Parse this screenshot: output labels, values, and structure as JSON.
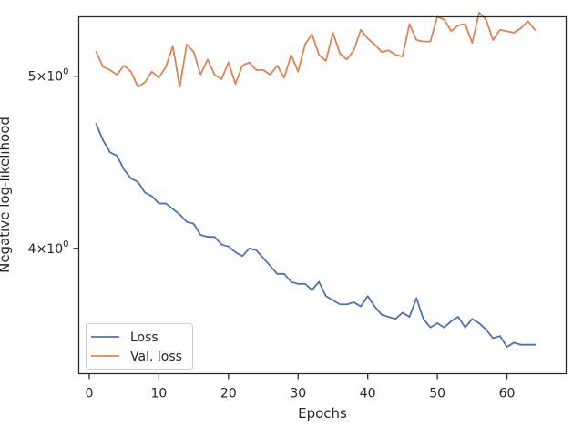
{
  "chart_data": {
    "type": "line",
    "xlabel": "Epochs",
    "ylabel": "Negative log-likelihood",
    "xlim": [
      -1.5,
      68.5
    ],
    "ylim": [
      3.4,
      5.4
    ],
    "y_scale": "log",
    "grid": false,
    "legend_position": "lower-left",
    "x_ticks": [
      {
        "value": 0,
        "label": "0"
      },
      {
        "value": 10,
        "label": "10"
      },
      {
        "value": 20,
        "label": "20"
      },
      {
        "value": 30,
        "label": "30"
      },
      {
        "value": 40,
        "label": "40"
      },
      {
        "value": 50,
        "label": "50"
      },
      {
        "value": 60,
        "label": "60"
      }
    ],
    "y_ticks": [
      {
        "value": 4.0,
        "base": "4",
        "mult": "×",
        "power": "10",
        "exp": "0"
      },
      {
        "value": 5.0,
        "base": "5",
        "mult": "×",
        "power": "10",
        "exp": "0"
      }
    ],
    "x": [
      1,
      2,
      3,
      4,
      5,
      6,
      7,
      8,
      9,
      10,
      11,
      12,
      13,
      14,
      15,
      16,
      17,
      18,
      19,
      20,
      21,
      22,
      23,
      24,
      25,
      26,
      27,
      28,
      29,
      30,
      31,
      32,
      33,
      34,
      35,
      36,
      37,
      38,
      39,
      40,
      41,
      42,
      43,
      44,
      45,
      46,
      47,
      48,
      49,
      50,
      51,
      52,
      53,
      54,
      55,
      56,
      57,
      58,
      59,
      60,
      61,
      62,
      63,
      64
    ],
    "series": [
      {
        "name": "Loss",
        "color": "#4c72b0",
        "values": [
          4.7,
          4.6,
          4.53,
          4.51,
          4.43,
          4.38,
          4.36,
          4.3,
          4.28,
          4.24,
          4.24,
          4.21,
          4.18,
          4.14,
          4.13,
          4.07,
          4.06,
          4.06,
          4.02,
          4.01,
          3.98,
          3.96,
          4.0,
          3.99,
          3.95,
          3.91,
          3.87,
          3.87,
          3.83,
          3.82,
          3.82,
          3.79,
          3.83,
          3.76,
          3.74,
          3.72,
          3.72,
          3.73,
          3.71,
          3.76,
          3.71,
          3.67,
          3.66,
          3.65,
          3.68,
          3.66,
          3.75,
          3.65,
          3.61,
          3.63,
          3.61,
          3.64,
          3.66,
          3.61,
          3.65,
          3.63,
          3.6,
          3.56,
          3.57,
          3.52,
          3.54,
          3.53,
          3.53,
          3.53
        ]
      },
      {
        "name": "Val. loss",
        "color": "#dd8452",
        "values": [
          5.16,
          5.06,
          5.04,
          5.01,
          5.07,
          5.03,
          4.93,
          4.96,
          5.03,
          4.99,
          5.06,
          5.2,
          4.93,
          5.21,
          5.16,
          5.01,
          5.11,
          5.01,
          4.98,
          5.09,
          4.95,
          5.07,
          5.09,
          5.04,
          5.04,
          5.01,
          5.07,
          4.99,
          5.14,
          5.03,
          5.21,
          5.28,
          5.14,
          5.1,
          5.29,
          5.15,
          5.11,
          5.17,
          5.31,
          5.25,
          5.21,
          5.16,
          5.17,
          5.14,
          5.13,
          5.35,
          5.24,
          5.23,
          5.23,
          5.4,
          5.38,
          5.3,
          5.34,
          5.35,
          5.22,
          5.43,
          5.38,
          5.24,
          5.31,
          5.3,
          5.29,
          5.32,
          5.37,
          5.31
        ]
      }
    ]
  }
}
